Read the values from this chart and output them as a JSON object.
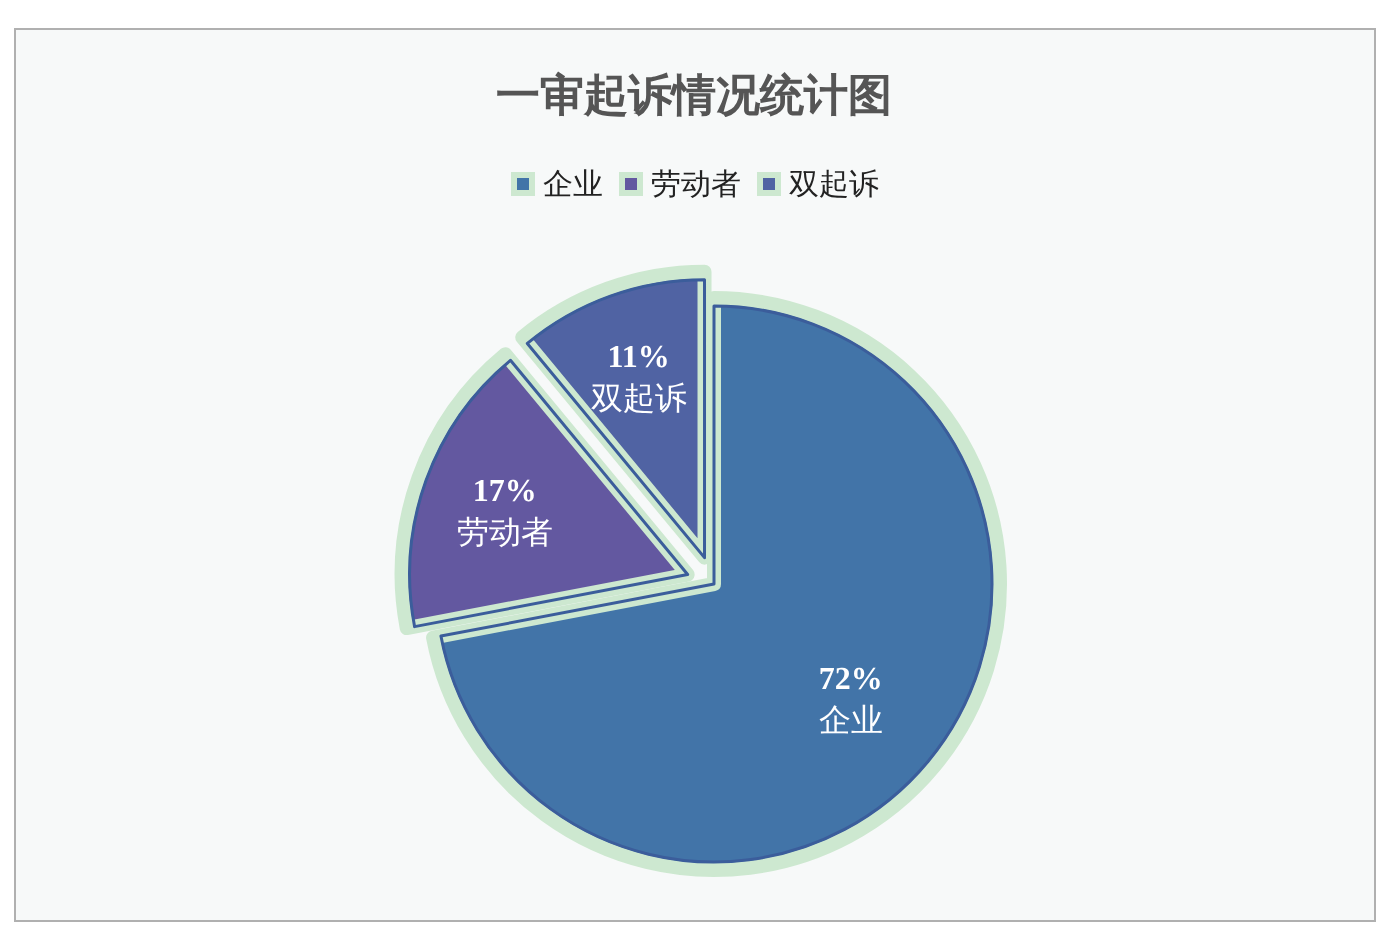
{
  "chart_data": {
    "type": "pie",
    "title": "一审起诉情况统计图",
    "categories": [
      "企业",
      "劳动者",
      "双起诉"
    ],
    "values": [
      72,
      17,
      11
    ],
    "colors": [
      "#4274a8",
      "#6358a0",
      "#5063a3"
    ],
    "value_labels": [
      "72%",
      "17%",
      "11%"
    ],
    "legend": "top"
  }
}
